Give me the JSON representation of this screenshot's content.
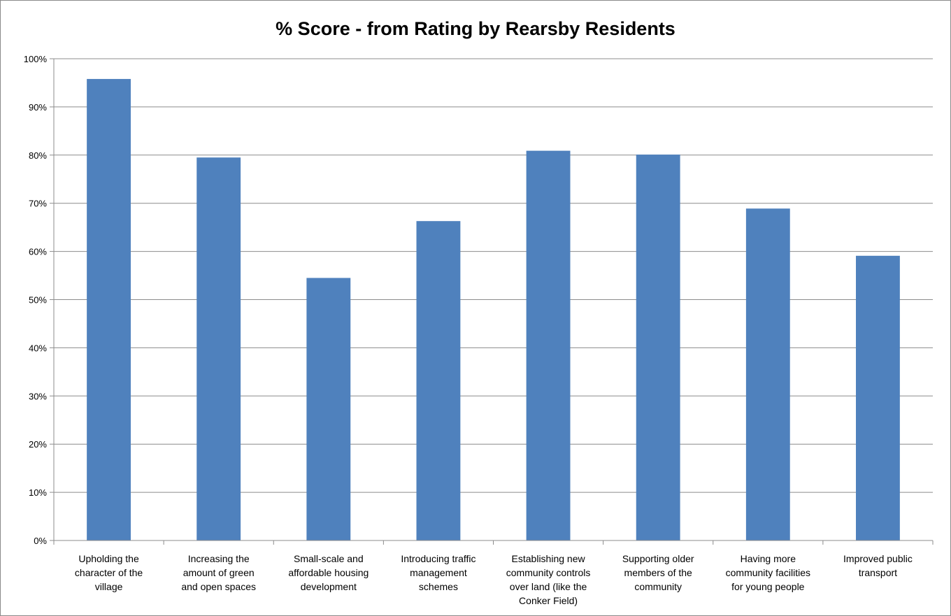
{
  "chart_data": {
    "type": "bar",
    "title": "% Score - from Rating by Rearsby Residents",
    "xlabel": "",
    "ylabel": "",
    "ylim": [
      0,
      100
    ],
    "yticks": [
      "0%",
      "10%",
      "20%",
      "30%",
      "40%",
      "50%",
      "60%",
      "70%",
      "80%",
      "90%",
      "100%"
    ],
    "grid": true,
    "categories": [
      [
        "Upholding the",
        "character of the",
        "village"
      ],
      [
        "Increasing the",
        "amount of green",
        "and open spaces"
      ],
      [
        "Small-scale and",
        "affordable housing",
        "development"
      ],
      [
        "Introducing traffic",
        "management",
        "schemes"
      ],
      [
        "Establishing new",
        "community controls",
        "over land (like the",
        "Conker Field)"
      ],
      [
        "Supporting older",
        "members of the",
        "community"
      ],
      [
        "Having more",
        "community facilities",
        "for young people"
      ],
      [
        "Improved public",
        "transport"
      ]
    ],
    "values": [
      95.8,
      79.5,
      54.5,
      66.3,
      80.9,
      80.1,
      68.9,
      59.1
    ],
    "bar_color": "#4F81BD",
    "grid_color": "#8C8C8C"
  }
}
